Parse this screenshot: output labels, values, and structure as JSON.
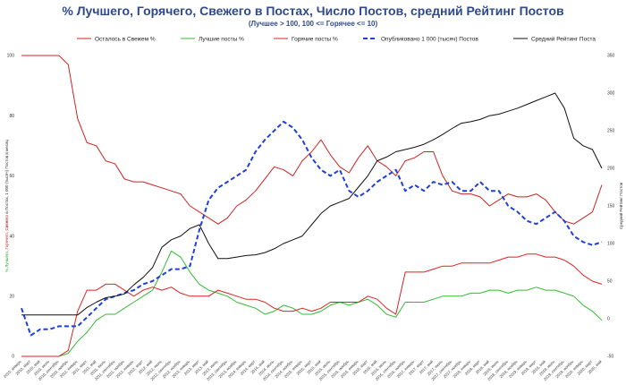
{
  "chart_data": {
    "type": "line",
    "title": "% Лучшего, Горячего, Свежего в Постах, Число Постов, средний Рейтинг Постов",
    "subtitle": "(Лучшее > 100, 100 <= Горячее <= 10)",
    "ylabel_left_parts": [
      {
        "text": "% Лучшего",
        "color": "#22aa22"
      },
      {
        "text": ", ",
        "color": "#333333"
      },
      {
        "text": "Горячего",
        "color": "#dd2222"
      },
      {
        "text": ", ",
        "color": "#333333"
      },
      {
        "text": "Свежего",
        "color": "#aa1111"
      },
      {
        "text": " в Постах, 1 000 (тысяч) Постов в месяц",
        "color": "#333333"
      }
    ],
    "ylabel_right": "Средний Рейтинг Постов",
    "ylim_left": [
      0,
      100
    ],
    "yticks_left": [
      "0",
      "20",
      "40",
      "60",
      "80",
      "100"
    ],
    "ylim_right": [
      -50,
      350
    ],
    "yticks_right": [
      "-50",
      "0",
      "50",
      "100",
      "150",
      "200",
      "250",
      "300",
      "350"
    ],
    "grid": false,
    "legend_position": "top",
    "x_labels": [
      "2010, январь",
      "2010, март",
      "2010, май",
      "2010, июль",
      "2010, сентябрь",
      "2010, ноябрь",
      "2011, январь",
      "2011, март",
      "2011, май",
      "2011, июль",
      "2011, сентябрь",
      "2011, ноябрь",
      "2012, январь",
      "2012, март",
      "2012, май",
      "2012, июль",
      "2012, сентябрь",
      "2012, ноябрь",
      "2013, январь",
      "2013, март",
      "2013, май",
      "2013, июль",
      "2013, сентябрь",
      "2013, ноябрь",
      "2014, январь",
      "2014, март",
      "2014, май",
      "2014, июль",
      "2014, сентябрь",
      "2014, ноябрь",
      "2015, январь",
      "2015, март",
      "2015, май",
      "2015, июль",
      "2015, сентябрь",
      "2015, ноябрь",
      "2016, январь",
      "2016, март",
      "2016, май",
      "2016, июль",
      "2016, сентябрь",
      "2016, ноябрь",
      "2017, январь",
      "2017, март",
      "2017, май",
      "2017, июль",
      "2017, сентябрь",
      "2017, ноябрь",
      "2018, январь",
      "2018, март",
      "2018, май",
      "2018, июль",
      "2018, сентябрь",
      "2018, ноябрь",
      "2019, январь",
      "2019, март",
      "2019, май",
      "2019, июль",
      "2019, сентябрь",
      "2019, ноябрь",
      "2020, январь",
      "2020, март",
      "2020, май"
    ],
    "series": [
      {
        "name": "Осталось в Свежем %",
        "color": "#cc2222",
        "width": 1,
        "dash": "",
        "axis": "left",
        "values": [
          100,
          100,
          100,
          100,
          100,
          97,
          79,
          71,
          70,
          65,
          64,
          59,
          58,
          58,
          57,
          56,
          55,
          54,
          50,
          48,
          46,
          44,
          46,
          50,
          52,
          55,
          59,
          63,
          62,
          60,
          65,
          68,
          72,
          67,
          63,
          61,
          66,
          70,
          65,
          63,
          60,
          65,
          66,
          68,
          68,
          60,
          55,
          54,
          54,
          53,
          50,
          52,
          54,
          53,
          53,
          54,
          52,
          48,
          45,
          44,
          46,
          48,
          57
        ]
      },
      {
        "name": "Лучшие посты %",
        "color": "#33bb33",
        "width": 1,
        "dash": "",
        "axis": "left",
        "values": [
          0,
          0,
          0,
          0,
          0,
          1,
          5,
          8,
          12,
          14,
          14,
          16,
          18,
          20,
          22,
          28,
          35,
          33,
          28,
          24,
          22,
          21,
          20,
          18,
          17,
          16,
          14,
          15,
          17,
          16,
          14,
          14,
          15,
          17,
          18,
          17,
          18,
          19,
          17,
          14,
          13,
          18,
          18,
          18,
          19,
          20,
          20,
          20,
          21,
          21,
          22,
          22,
          21,
          22,
          22,
          23,
          22,
          22,
          21,
          20,
          17,
          15,
          12
        ]
      },
      {
        "name": "Горячие посты %",
        "color": "#dd2222",
        "width": 1,
        "dash": "",
        "axis": "left",
        "values": [
          0,
          0,
          0,
          0,
          0,
          2,
          15,
          22,
          22,
          24,
          24,
          22,
          20,
          22,
          23,
          22,
          23,
          21,
          20,
          20,
          20,
          22,
          21,
          20,
          19,
          19,
          18,
          16,
          15,
          15,
          16,
          15,
          16,
          18,
          18,
          18,
          18,
          20,
          19,
          16,
          14,
          28,
          28,
          28,
          29,
          30,
          30,
          31,
          31,
          31,
          31,
          32,
          33,
          33,
          34,
          34,
          33,
          33,
          32,
          30,
          27,
          25,
          24
        ]
      },
      {
        "name": "Опубликовано 1 000 (тысяч) Постов",
        "color": "#1f3fd8",
        "width": 2,
        "dash": "5,3",
        "axis": "left",
        "values": [
          16,
          7,
          9,
          9,
          10,
          10,
          10,
          13,
          16,
          19,
          20,
          21,
          22,
          24,
          25,
          27,
          29,
          29,
          30,
          42,
          52,
          56,
          58,
          60,
          62,
          68,
          72,
          75,
          78,
          76,
          72,
          66,
          62,
          60,
          62,
          55,
          53,
          55,
          58,
          60,
          62,
          55,
          57,
          55,
          58,
          57,
          58,
          55,
          55,
          58,
          55,
          55,
          50,
          48,
          45,
          44,
          46,
          48,
          45,
          40,
          38,
          37,
          38
        ]
      },
      {
        "name": "Средний Рейтинг Поста",
        "color": "#111111",
        "width": 1,
        "dash": "",
        "axis": "right",
        "values": [
          5,
          5,
          5,
          5,
          5,
          5,
          5,
          15,
          22,
          28,
          30,
          33,
          45,
          55,
          68,
          95,
          105,
          110,
          120,
          125,
          100,
          80,
          80,
          82,
          84,
          85,
          88,
          93,
          100,
          105,
          110,
          125,
          140,
          150,
          155,
          160,
          175,
          190,
          210,
          215,
          222,
          225,
          228,
          232,
          238,
          245,
          253,
          260,
          262,
          265,
          270,
          272,
          276,
          280,
          285,
          290,
          295,
          300,
          280,
          240,
          230,
          225,
          200
        ]
      }
    ]
  }
}
